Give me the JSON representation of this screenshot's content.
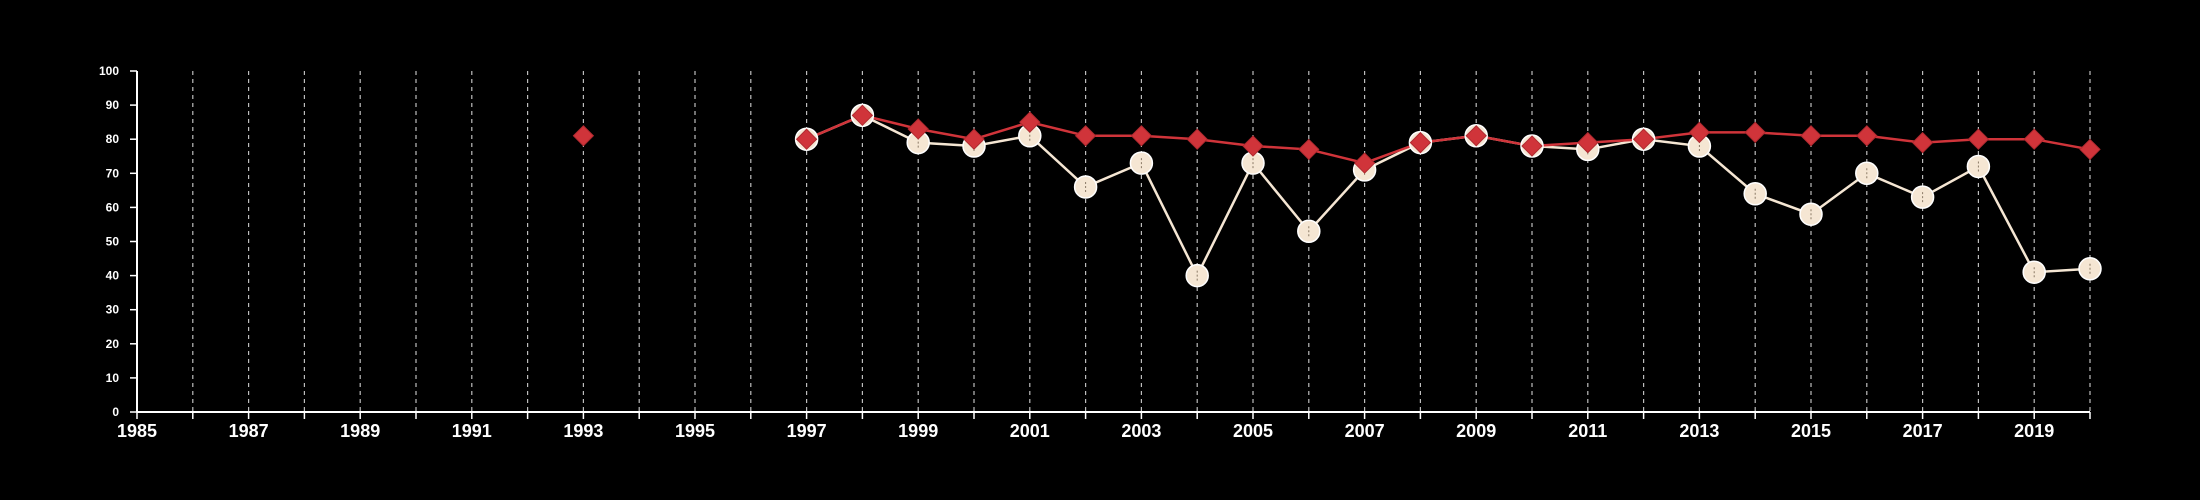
{
  "chart_data": {
    "type": "line",
    "title": "",
    "xlabel": "",
    "ylabel": "",
    "xlim": [
      1985,
      2020
    ],
    "ylim": [
      0,
      100
    ],
    "y_ticks": [
      0,
      10,
      20,
      30,
      40,
      50,
      60,
      70,
      80,
      90,
      100
    ],
    "x_tick_labels": [
      1985,
      1987,
      1989,
      1991,
      1993,
      1995,
      1997,
      1999,
      2001,
      2003,
      2005,
      2007,
      2009,
      2011,
      2013,
      2015,
      2017,
      2019
    ],
    "vertical_grid": "dashed, every year",
    "series": [
      {
        "color": "#f5e6d3",
        "marker": "circle",
        "x": [
          1997,
          1998,
          1999,
          2000,
          2001,
          2002,
          2003,
          2004,
          2005,
          2006,
          2007,
          2008,
          2009,
          2010,
          2011,
          2012,
          2013,
          2014,
          2015,
          2016,
          2017,
          2018,
          2019,
          2020
        ],
        "values": [
          80,
          87,
          79,
          78,
          81,
          66,
          73,
          40,
          73,
          53,
          71,
          79,
          81,
          78,
          77,
          80,
          78,
          64,
          58,
          70,
          63,
          72,
          41,
          42
        ]
      },
      {
        "color": "#d0343a",
        "marker": "diamond",
        "x": [
          1993,
          1997,
          1998,
          1999,
          2000,
          2001,
          2002,
          2003,
          2004,
          2005,
          2006,
          2007,
          2008,
          2009,
          2010,
          2011,
          2012,
          2013,
          2014,
          2015,
          2016,
          2017,
          2018,
          2019,
          2020
        ],
        "values": [
          81,
          80,
          87,
          83,
          80,
          85,
          81,
          81,
          80,
          78,
          77,
          73,
          79,
          81,
          78,
          79,
          80,
          82,
          82,
          81,
          81,
          79,
          80,
          80,
          77
        ]
      }
    ]
  }
}
